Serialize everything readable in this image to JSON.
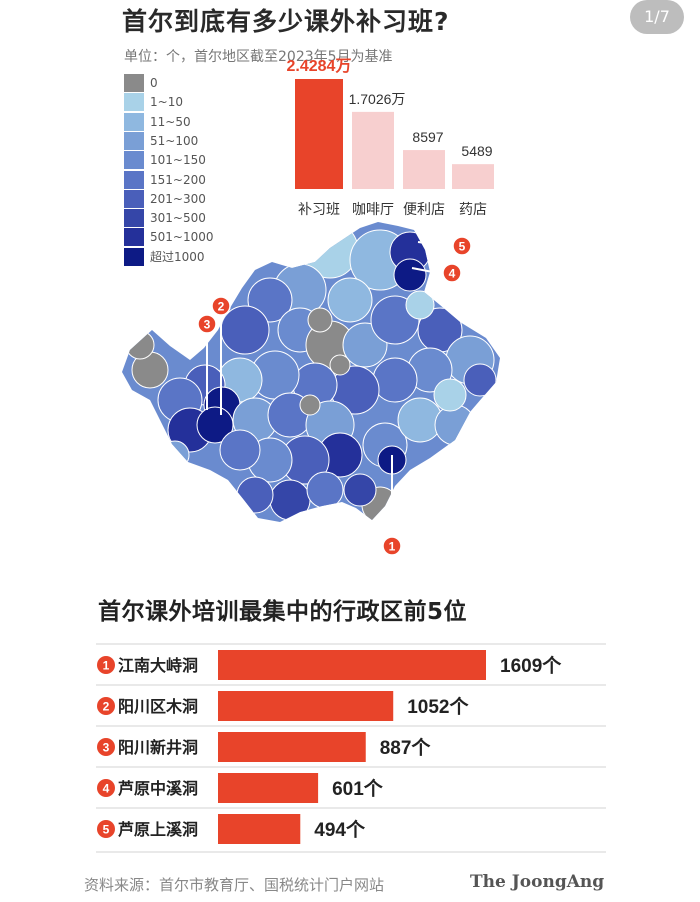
{
  "page_indicator": "1/7",
  "header": {
    "title": "首尔到底有多少课外补习班?",
    "subtitle": "单位：个，首尔地区截至2023年5月为基准"
  },
  "legend": {
    "items": [
      {
        "label": "0",
        "color": "#8a8a8a"
      },
      {
        "label": "1~10",
        "color": "#a9d2e8"
      },
      {
        "label": "11~50",
        "color": "#8fb8e0"
      },
      {
        "label": "51~100",
        "color": "#7a9fd6"
      },
      {
        "label": "101~150",
        "color": "#6a8bcf"
      },
      {
        "label": "151~200",
        "color": "#5a75c6"
      },
      {
        "label": "201~300",
        "color": "#4a5fba"
      },
      {
        "label": "301~500",
        "color": "#3546a8"
      },
      {
        "label": "501~1000",
        "color": "#24309a"
      },
      {
        "label": "超过1000",
        "color": "#0d1a85"
      }
    ]
  },
  "map": {
    "markers": [
      "1",
      "2",
      "3",
      "4",
      "5"
    ]
  },
  "chart_data": [
    {
      "type": "bar",
      "categories": [
        "补习班",
        "咖啡厅",
        "便利店",
        "药店"
      ],
      "values": [
        24284,
        17026,
        8597,
        5489
      ],
      "value_labels": [
        "2.4284万",
        "1.7026万",
        "8597",
        "5489"
      ],
      "colors": [
        "#e8442a",
        "#f7cfcf",
        "#f7cfcf",
        "#f7cfcf"
      ],
      "ylim": [
        0,
        24284
      ]
    },
    {
      "type": "bar",
      "title": "首尔课外培训最集中的行政区前5位",
      "categories": [
        "江南大峙洞",
        "阳川区木洞",
        "阳川新井洞",
        "芦原中溪洞",
        "芦原上溪洞"
      ],
      "ranks": [
        "1",
        "2",
        "3",
        "4",
        "5"
      ],
      "values": [
        1609,
        1052,
        887,
        601,
        494
      ],
      "value_labels": [
        "1609个",
        "1052个",
        "887个",
        "601个",
        "494个"
      ],
      "color": "#e8442a",
      "xlim": [
        0,
        1609
      ]
    }
  ],
  "footer": {
    "source": "资料来源：首尔市教育厅、国税统计门户网站",
    "brand": "The JoongAng"
  },
  "colors": {
    "accent": "#e8442a",
    "pink": "#f7cfcf",
    "marker": "#e8442a"
  }
}
